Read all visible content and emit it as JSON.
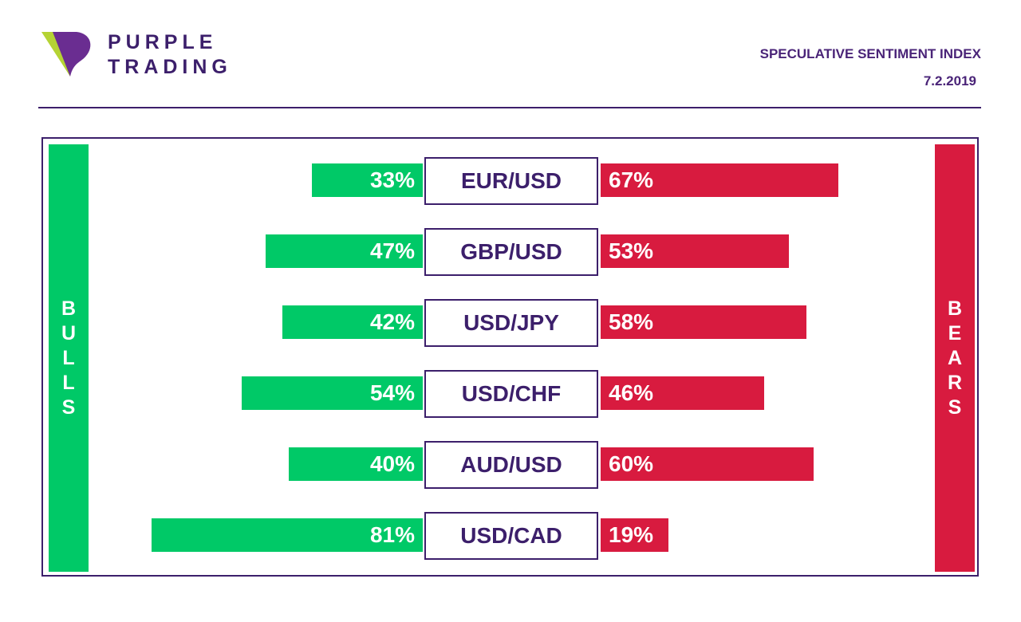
{
  "brand": {
    "name_line1": "PURPLE",
    "name_line2": "TRADING"
  },
  "header": {
    "title": "SPECULATIVE SENTIMENT INDEX",
    "date": "7.2.2019"
  },
  "labels": {
    "bulls": "BULLS",
    "bears": "BEARS"
  },
  "colors": {
    "bulls": "#00c967",
    "bears": "#d81b3f",
    "brand": "#3c1f6b"
  },
  "chart_data": {
    "type": "bar",
    "orientation": "horizontal-diverging",
    "categories": [
      "EUR/USD",
      "GBP/USD",
      "USD/JPY",
      "USD/CHF",
      "AUD/USD",
      "USD/CAD"
    ],
    "series": [
      {
        "name": "BULLS",
        "values": [
          33,
          47,
          42,
          54,
          40,
          81
        ],
        "labels": [
          "33%",
          "47%",
          "42%",
          "54%",
          "40%",
          "81%"
        ]
      },
      {
        "name": "BEARS",
        "values": [
          67,
          53,
          58,
          46,
          60,
          19
        ],
        "labels": [
          "67%",
          "53%",
          "58%",
          "46%",
          "60%",
          "19%"
        ]
      }
    ],
    "unit": "%"
  }
}
